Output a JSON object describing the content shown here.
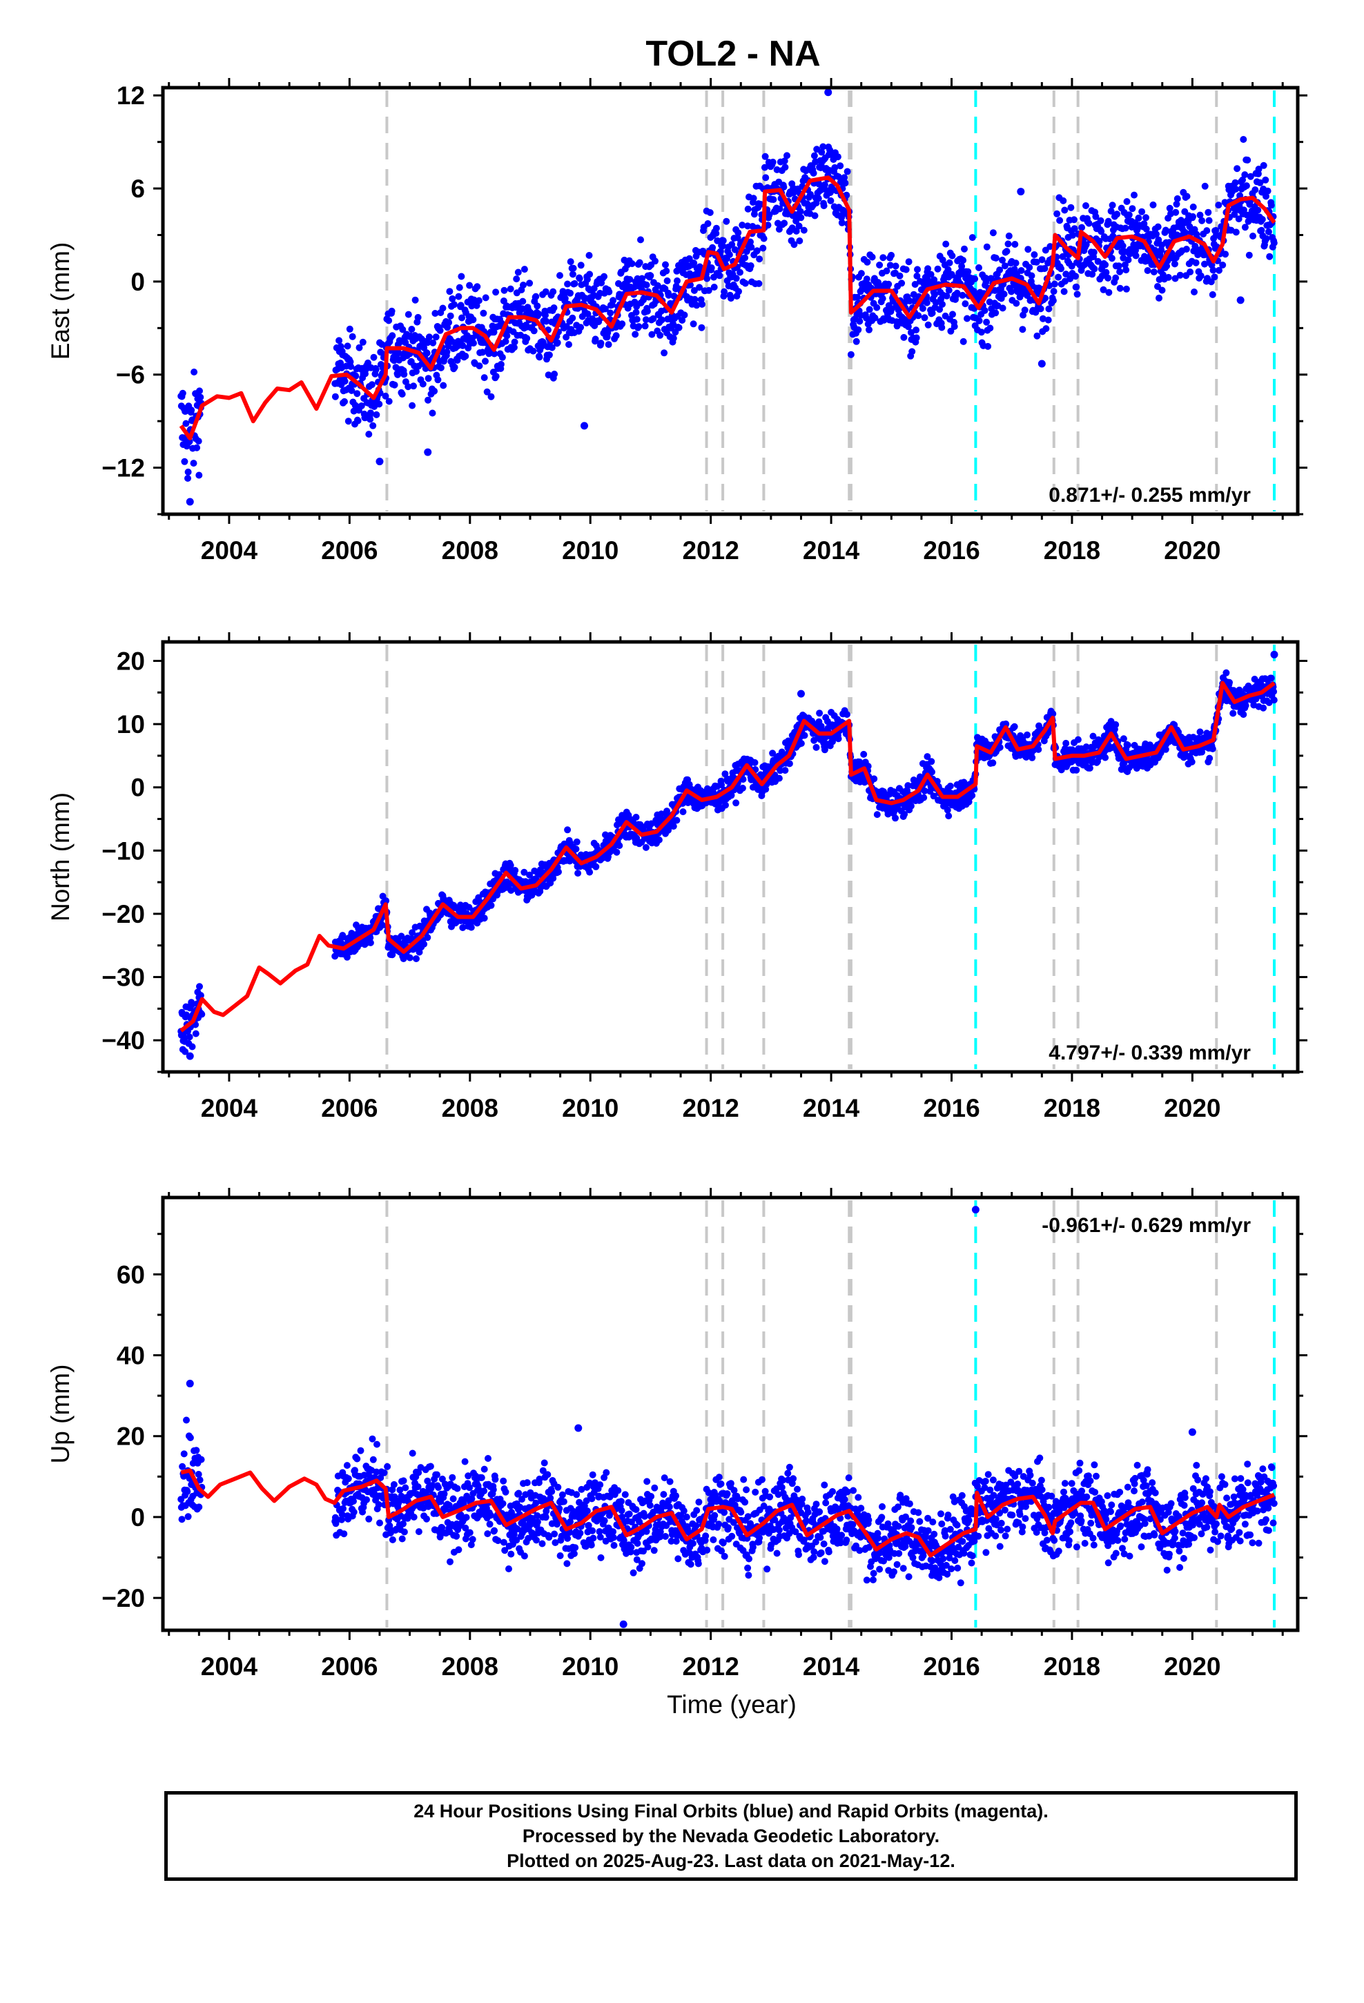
{
  "figure": {
    "title": "TOL2 - NA",
    "xlabel": "Time (year)"
  },
  "footer": {
    "line1": "24 Hour Positions Using Final Orbits (blue) and Rapid Orbits (magenta).",
    "line2": "Processed by the Nevada Geodetic Laboratory.",
    "line3": "Plotted on 2025-Aug-23. Last data on 2021-May-12."
  },
  "colors": {
    "data_points": "#0000ff",
    "model_line": "#ff0000",
    "equipment_change": "#c8c8c8",
    "earthquake": "#00ffff"
  },
  "chart_data": [
    {
      "type": "scatter",
      "component": "East",
      "ylabel": "East (mm)",
      "ylim": [
        -15,
        12.5
      ],
      "yticks": [
        12,
        6,
        0,
        -6,
        -12
      ],
      "xlim": [
        2002.9,
        2021.75
      ],
      "xticks": [
        2004,
        2006,
        2008,
        2010,
        2012,
        2014,
        2016,
        2018,
        2020
      ],
      "rate_label": "0.871+/- 0.255 mm/yr",
      "rate_label_position": "bottom-right",
      "data_range": [
        2003.2,
        2021.36
      ],
      "model_line": [
        [
          2003.2,
          -9.3
        ],
        [
          2003.35,
          -10.1
        ],
        [
          2003.55,
          -8.0
        ],
        [
          2003.8,
          -7.4
        ],
        [
          2004.0,
          -7.5
        ],
        [
          2004.2,
          -7.2
        ],
        [
          2004.4,
          -9.0
        ],
        [
          2004.6,
          -7.8
        ],
        [
          2004.8,
          -6.9
        ],
        [
          2005.0,
          -7.0
        ],
        [
          2005.2,
          -6.5
        ],
        [
          2005.45,
          -8.2
        ],
        [
          2005.7,
          -6.1
        ],
        [
          2005.95,
          -6.0
        ],
        [
          2006.15,
          -6.6
        ],
        [
          2006.4,
          -7.5
        ],
        [
          2006.6,
          -6.0
        ],
        [
          2006.62,
          -4.3
        ],
        [
          2006.9,
          -4.3
        ],
        [
          2007.15,
          -4.6
        ],
        [
          2007.35,
          -5.6
        ],
        [
          2007.6,
          -3.4
        ],
        [
          2007.85,
          -3.0
        ],
        [
          2008.05,
          -3.0
        ],
        [
          2008.25,
          -3.5
        ],
        [
          2008.4,
          -4.4
        ],
        [
          2008.65,
          -2.3
        ],
        [
          2008.9,
          -2.3
        ],
        [
          2009.1,
          -2.5
        ],
        [
          2009.35,
          -3.8
        ],
        [
          2009.6,
          -1.6
        ],
        [
          2009.85,
          -1.5
        ],
        [
          2010.1,
          -1.8
        ],
        [
          2010.35,
          -2.9
        ],
        [
          2010.6,
          -0.8
        ],
        [
          2010.85,
          -0.7
        ],
        [
          2011.1,
          -0.9
        ],
        [
          2011.35,
          -2.0
        ],
        [
          2011.6,
          0.0
        ],
        [
          2011.85,
          0.2
        ],
        [
          2011.96,
          1.9
        ],
        [
          2012.1,
          1.8
        ],
        [
          2012.22,
          0.8
        ],
        [
          2012.4,
          1.1
        ],
        [
          2012.65,
          3.2
        ],
        [
          2012.88,
          3.3
        ],
        [
          2012.9,
          5.8
        ],
        [
          2013.15,
          5.9
        ],
        [
          2013.35,
          4.5
        ],
        [
          2013.65,
          6.5
        ],
        [
          2013.95,
          6.7
        ],
        [
          2014.1,
          6.2
        ],
        [
          2014.3,
          4.6
        ],
        [
          2014.33,
          -2.0
        ],
        [
          2014.45,
          -1.6
        ],
        [
          2014.7,
          -0.6
        ],
        [
          2015.0,
          -0.6
        ],
        [
          2015.3,
          -2.3
        ],
        [
          2015.6,
          -0.5
        ],
        [
          2015.9,
          -0.2
        ],
        [
          2016.2,
          -0.3
        ],
        [
          2016.45,
          -1.7
        ],
        [
          2016.7,
          -0.1
        ],
        [
          2017.0,
          0.2
        ],
        [
          2017.25,
          -0.2
        ],
        [
          2017.45,
          -1.4
        ],
        [
          2017.68,
          1.1
        ],
        [
          2017.72,
          3.0
        ],
        [
          2017.9,
          2.2
        ],
        [
          2018.1,
          1.5
        ],
        [
          2018.15,
          3.2
        ],
        [
          2018.35,
          2.6
        ],
        [
          2018.55,
          1.6
        ],
        [
          2018.75,
          2.8
        ],
        [
          2019.0,
          2.9
        ],
        [
          2019.2,
          2.6
        ],
        [
          2019.45,
          0.9
        ],
        [
          2019.7,
          2.6
        ],
        [
          2019.95,
          2.9
        ],
        [
          2020.2,
          2.4
        ],
        [
          2020.35,
          1.3
        ],
        [
          2020.5,
          2.4
        ],
        [
          2020.6,
          4.9
        ],
        [
          2020.8,
          5.3
        ],
        [
          2021.0,
          5.4
        ],
        [
          2021.2,
          4.7
        ],
        [
          2021.36,
          3.8
        ]
      ],
      "scatter_spread": [
        [
          2003.2,
          2.5
        ],
        [
          2003.45,
          2.0
        ],
        [
          2005.75,
          1.8
        ],
        [
          2014.3,
          1.8
        ],
        [
          2021.36,
          1.8
        ]
      ],
      "outliers": [
        [
          2003.35,
          -14.2
        ],
        [
          2006.5,
          -11.6
        ],
        [
          2007.3,
          -11.0
        ],
        [
          2009.9,
          -9.3
        ],
        [
          2013.95,
          12.2
        ],
        [
          2017.15,
          5.8
        ],
        [
          2017.5,
          -5.3
        ],
        [
          2020.8,
          -1.2
        ]
      ],
      "equipment_changes": [
        2006.62,
        2011.93,
        2012.2,
        2012.88,
        2014.3,
        2014.33,
        2017.7,
        2018.1,
        2020.4
      ],
      "earthquakes": [
        2016.4,
        2021.36
      ]
    },
    {
      "type": "scatter",
      "component": "North",
      "ylabel": "North (mm)",
      "ylim": [
        -45,
        23
      ],
      "yticks": [
        20,
        10,
        0,
        -10,
        -20,
        -30,
        -40
      ],
      "xlim": [
        2002.9,
        2021.75
      ],
      "xticks": [
        2004,
        2006,
        2008,
        2010,
        2012,
        2014,
        2016,
        2018,
        2020
      ],
      "rate_label": "4.797+/- 0.339 mm/yr",
      "rate_label_position": "bottom-right",
      "data_range": [
        2003.2,
        2021.36
      ],
      "model_line": [
        [
          2003.2,
          -38.5
        ],
        [
          2003.4,
          -37.0
        ],
        [
          2003.55,
          -33.5
        ],
        [
          2003.75,
          -35.5
        ],
        [
          2003.9,
          -36.0
        ],
        [
          2004.1,
          -34.5
        ],
        [
          2004.3,
          -33.0
        ],
        [
          2004.5,
          -28.5
        ],
        [
          2004.65,
          -29.5
        ],
        [
          2004.85,
          -31.0
        ],
        [
          2005.1,
          -29.0
        ],
        [
          2005.3,
          -28.0
        ],
        [
          2005.5,
          -23.5
        ],
        [
          2005.65,
          -25.0
        ],
        [
          2005.9,
          -25.5
        ],
        [
          2006.15,
          -24.0
        ],
        [
          2006.4,
          -22.5
        ],
        [
          2006.6,
          -18.5
        ],
        [
          2006.65,
          -24.0
        ],
        [
          2006.9,
          -26.0
        ],
        [
          2007.2,
          -23.5
        ],
        [
          2007.55,
          -18.5
        ],
        [
          2007.8,
          -20.5
        ],
        [
          2008.05,
          -20.5
        ],
        [
          2008.3,
          -17.5
        ],
        [
          2008.6,
          -13.5
        ],
        [
          2008.85,
          -16.0
        ],
        [
          2009.1,
          -15.5
        ],
        [
          2009.35,
          -13.0
        ],
        [
          2009.6,
          -9.5
        ],
        [
          2009.85,
          -12.0
        ],
        [
          2010.1,
          -11.0
        ],
        [
          2010.35,
          -9.0
        ],
        [
          2010.6,
          -5.5
        ],
        [
          2010.85,
          -7.5
        ],
        [
          2011.1,
          -7.0
        ],
        [
          2011.35,
          -4.5
        ],
        [
          2011.6,
          -0.5
        ],
        [
          2011.85,
          -2.0
        ],
        [
          2012.1,
          -1.5
        ],
        [
          2012.35,
          0.0
        ],
        [
          2012.6,
          3.5
        ],
        [
          2012.85,
          0.5
        ],
        [
          2013.1,
          3.5
        ],
        [
          2013.3,
          5.0
        ],
        [
          2013.55,
          10.5
        ],
        [
          2013.8,
          8.5
        ],
        [
          2014.0,
          8.5
        ],
        [
          2014.3,
          10.5
        ],
        [
          2014.33,
          2.0
        ],
        [
          2014.55,
          3.0
        ],
        [
          2014.75,
          -2.0
        ],
        [
          2015.0,
          -2.5
        ],
        [
          2015.2,
          -2.0
        ],
        [
          2015.45,
          -0.5
        ],
        [
          2015.6,
          2.0
        ],
        [
          2015.85,
          -1.5
        ],
        [
          2016.1,
          -1.5
        ],
        [
          2016.4,
          0.5
        ],
        [
          2016.42,
          6.5
        ],
        [
          2016.65,
          5.5
        ],
        [
          2016.9,
          9.5
        ],
        [
          2017.1,
          6.0
        ],
        [
          2017.35,
          6.5
        ],
        [
          2017.55,
          9.0
        ],
        [
          2017.68,
          11.0
        ],
        [
          2017.72,
          4.5
        ],
        [
          2018.0,
          5.0
        ],
        [
          2018.2,
          5.0
        ],
        [
          2018.45,
          5.5
        ],
        [
          2018.65,
          8.5
        ],
        [
          2018.9,
          4.5
        ],
        [
          2019.15,
          5.0
        ],
        [
          2019.4,
          5.5
        ],
        [
          2019.65,
          9.5
        ],
        [
          2019.85,
          6.0
        ],
        [
          2020.1,
          6.5
        ],
        [
          2020.35,
          7.5
        ],
        [
          2020.5,
          16.5
        ],
        [
          2020.7,
          13.5
        ],
        [
          2020.95,
          14.5
        ],
        [
          2021.15,
          15.0
        ],
        [
          2021.36,
          16.5
        ]
      ],
      "scatter_spread": [
        [
          2003.2,
          2.5
        ],
        [
          2005.75,
          1.5
        ],
        [
          2014.3,
          1.5
        ],
        [
          2021.36,
          1.5
        ]
      ],
      "outliers": [
        [
          2003.35,
          -42.5
        ],
        [
          2021.36,
          21.0
        ],
        [
          2013.5,
          14.8
        ]
      ],
      "equipment_changes": [
        2006.62,
        2011.93,
        2012.2,
        2012.88,
        2014.3,
        2014.33,
        2017.7,
        2018.1,
        2020.4
      ],
      "earthquakes": [
        2016.4,
        2021.36
      ]
    },
    {
      "type": "scatter",
      "component": "Up",
      "ylabel": "Up (mm)",
      "ylim": [
        -28,
        79
      ],
      "yticks": [
        60,
        40,
        20,
        0,
        -20
      ],
      "xlim": [
        2002.9,
        2021.75
      ],
      "xticks": [
        2004,
        2006,
        2008,
        2010,
        2012,
        2014,
        2016,
        2018,
        2020
      ],
      "rate_label": "-0.961+/- 0.629 mm/yr",
      "rate_label_position": "top-right",
      "data_range": [
        2003.2,
        2021.36
      ],
      "model_line": [
        [
          2003.2,
          11.0
        ],
        [
          2003.35,
          11.5
        ],
        [
          2003.5,
          7.0
        ],
        [
          2003.65,
          5.0
        ],
        [
          2003.85,
          8.0
        ],
        [
          2004.1,
          9.5
        ],
        [
          2004.35,
          11.0
        ],
        [
          2004.55,
          7.0
        ],
        [
          2004.75,
          4.0
        ],
        [
          2005.0,
          7.5
        ],
        [
          2005.25,
          9.5
        ],
        [
          2005.45,
          8.0
        ],
        [
          2005.6,
          4.5
        ],
        [
          2005.75,
          3.5
        ],
        [
          2005.9,
          6.5
        ],
        [
          2006.2,
          7.5
        ],
        [
          2006.45,
          9.0
        ],
        [
          2006.6,
          7.0
        ],
        [
          2006.65,
          0.0
        ],
        [
          2006.85,
          1.5
        ],
        [
          2007.1,
          4.0
        ],
        [
          2007.35,
          5.0
        ],
        [
          2007.55,
          0.0
        ],
        [
          2007.8,
          1.5
        ],
        [
          2008.1,
          3.5
        ],
        [
          2008.35,
          4.0
        ],
        [
          2008.6,
          -2.0
        ],
        [
          2008.85,
          0.0
        ],
        [
          2009.1,
          2.0
        ],
        [
          2009.35,
          3.5
        ],
        [
          2009.6,
          -3.0
        ],
        [
          2009.85,
          -1.5
        ],
        [
          2010.1,
          1.5
        ],
        [
          2010.35,
          2.5
        ],
        [
          2010.6,
          -4.5
        ],
        [
          2010.85,
          -2.5
        ],
        [
          2011.1,
          0.0
        ],
        [
          2011.35,
          1.0
        ],
        [
          2011.6,
          -5.5
        ],
        [
          2011.85,
          -3.0
        ],
        [
          2011.96,
          2.0
        ],
        [
          2012.2,
          2.5
        ],
        [
          2012.35,
          2.0
        ],
        [
          2012.6,
          -4.5
        ],
        [
          2012.88,
          -1.5
        ],
        [
          2013.1,
          1.5
        ],
        [
          2013.35,
          3.0
        ],
        [
          2013.6,
          -4.5
        ],
        [
          2013.85,
          -2.0
        ],
        [
          2014.1,
          0.5
        ],
        [
          2014.3,
          1.5
        ],
        [
          2014.55,
          -3.5
        ],
        [
          2014.75,
          -8.0
        ],
        [
          2015.0,
          -5.5
        ],
        [
          2015.25,
          -4.0
        ],
        [
          2015.45,
          -5.0
        ],
        [
          2015.65,
          -9.5
        ],
        [
          2015.9,
          -7.0
        ],
        [
          2016.2,
          -4.0
        ],
        [
          2016.4,
          -3.0
        ],
        [
          2016.42,
          6.0
        ],
        [
          2016.6,
          0.0
        ],
        [
          2016.85,
          3.0
        ],
        [
          2017.1,
          4.5
        ],
        [
          2017.35,
          5.0
        ],
        [
          2017.55,
          0.5
        ],
        [
          2017.68,
          -4.0
        ],
        [
          2017.72,
          -1.0
        ],
        [
          2018.0,
          2.0
        ],
        [
          2018.15,
          3.5
        ],
        [
          2018.35,
          3.5
        ],
        [
          2018.55,
          -3.0
        ],
        [
          2018.8,
          -0.5
        ],
        [
          2019.05,
          2.0
        ],
        [
          2019.3,
          2.5
        ],
        [
          2019.5,
          -4.0
        ],
        [
          2019.75,
          -1.5
        ],
        [
          2020.0,
          1.0
        ],
        [
          2020.25,
          2.5
        ],
        [
          2020.4,
          0.0
        ],
        [
          2020.45,
          3.0
        ],
        [
          2020.6,
          0.0
        ],
        [
          2020.85,
          2.5
        ],
        [
          2021.1,
          4.0
        ],
        [
          2021.36,
          5.5
        ]
      ],
      "scatter_spread": [
        [
          2003.2,
          7.0
        ],
        [
          2005.75,
          6.0
        ],
        [
          2014.3,
          6.0
        ],
        [
          2021.36,
          6.0
        ]
      ],
      "outliers": [
        [
          2016.4,
          76.0
        ],
        [
          2003.35,
          33.0
        ],
        [
          2020.0,
          21.0
        ],
        [
          2010.55,
          -26.5
        ],
        [
          2009.8,
          22.0
        ]
      ],
      "equipment_changes": [
        2006.62,
        2011.93,
        2012.2,
        2012.88,
        2014.3,
        2014.33,
        2017.7,
        2018.1,
        2020.4
      ],
      "earthquakes": [
        2016.4,
        2021.36
      ]
    }
  ]
}
